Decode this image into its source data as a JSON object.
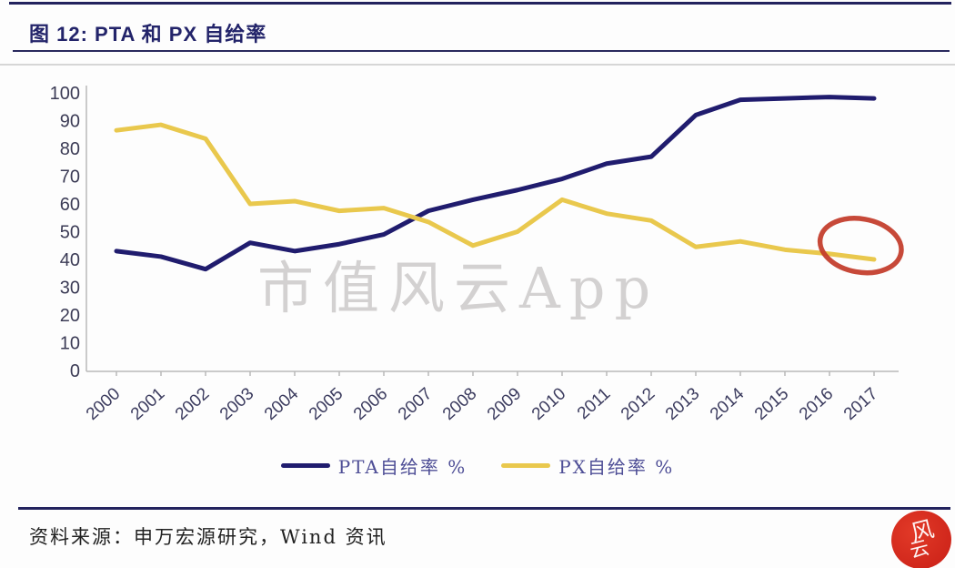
{
  "header": {
    "title": "图 12: PTA 和 PX 自给率"
  },
  "watermark": {
    "text": "市值风云App"
  },
  "chart_data": {
    "type": "line",
    "title": "PTA 和 PX 自给率",
    "xlabel": "",
    "ylabel": "",
    "categories": [
      "2000",
      "2001",
      "2002",
      "2003",
      "2004",
      "2005",
      "2006",
      "2007",
      "2008",
      "2009",
      "2010",
      "2011",
      "2012",
      "2013",
      "2014",
      "2015",
      "2016",
      "2017"
    ],
    "series": [
      {
        "name": "PTA自给率 %",
        "color": "#201c6e",
        "values": [
          43,
          41,
          36.5,
          46,
          43,
          45.5,
          49,
          57.5,
          61.5,
          65,
          69,
          74.5,
          77,
          92,
          97.5,
          98,
          98.5,
          98
        ]
      },
      {
        "name": "PX自给率 %",
        "color": "#e9c84d",
        "values": [
          86.5,
          88.5,
          83.5,
          60,
          61,
          57.5,
          58.5,
          53.5,
          45,
          50,
          61.5,
          56.5,
          54,
          44.5,
          46.5,
          43.5,
          42,
          40
        ]
      }
    ],
    "ylim": [
      0,
      100
    ],
    "y_ticks": [
      0,
      10,
      20,
      30,
      40,
      50,
      60,
      70,
      80,
      90,
      100
    ],
    "grid": false,
    "legend_position": "bottom",
    "annotation": {
      "shape": "ellipse",
      "target": "PX 2016-2017 endpoint",
      "center_year_index": 16.7,
      "center_value": 45,
      "rx_years": 0.92,
      "ry_values": 9.6,
      "rotate_deg": 10,
      "color": "#c23a28"
    }
  },
  "footer": {
    "source": "资料来源：申万宏源研究，Wind 资讯",
    "logo_chars": [
      "风",
      "云"
    ]
  }
}
